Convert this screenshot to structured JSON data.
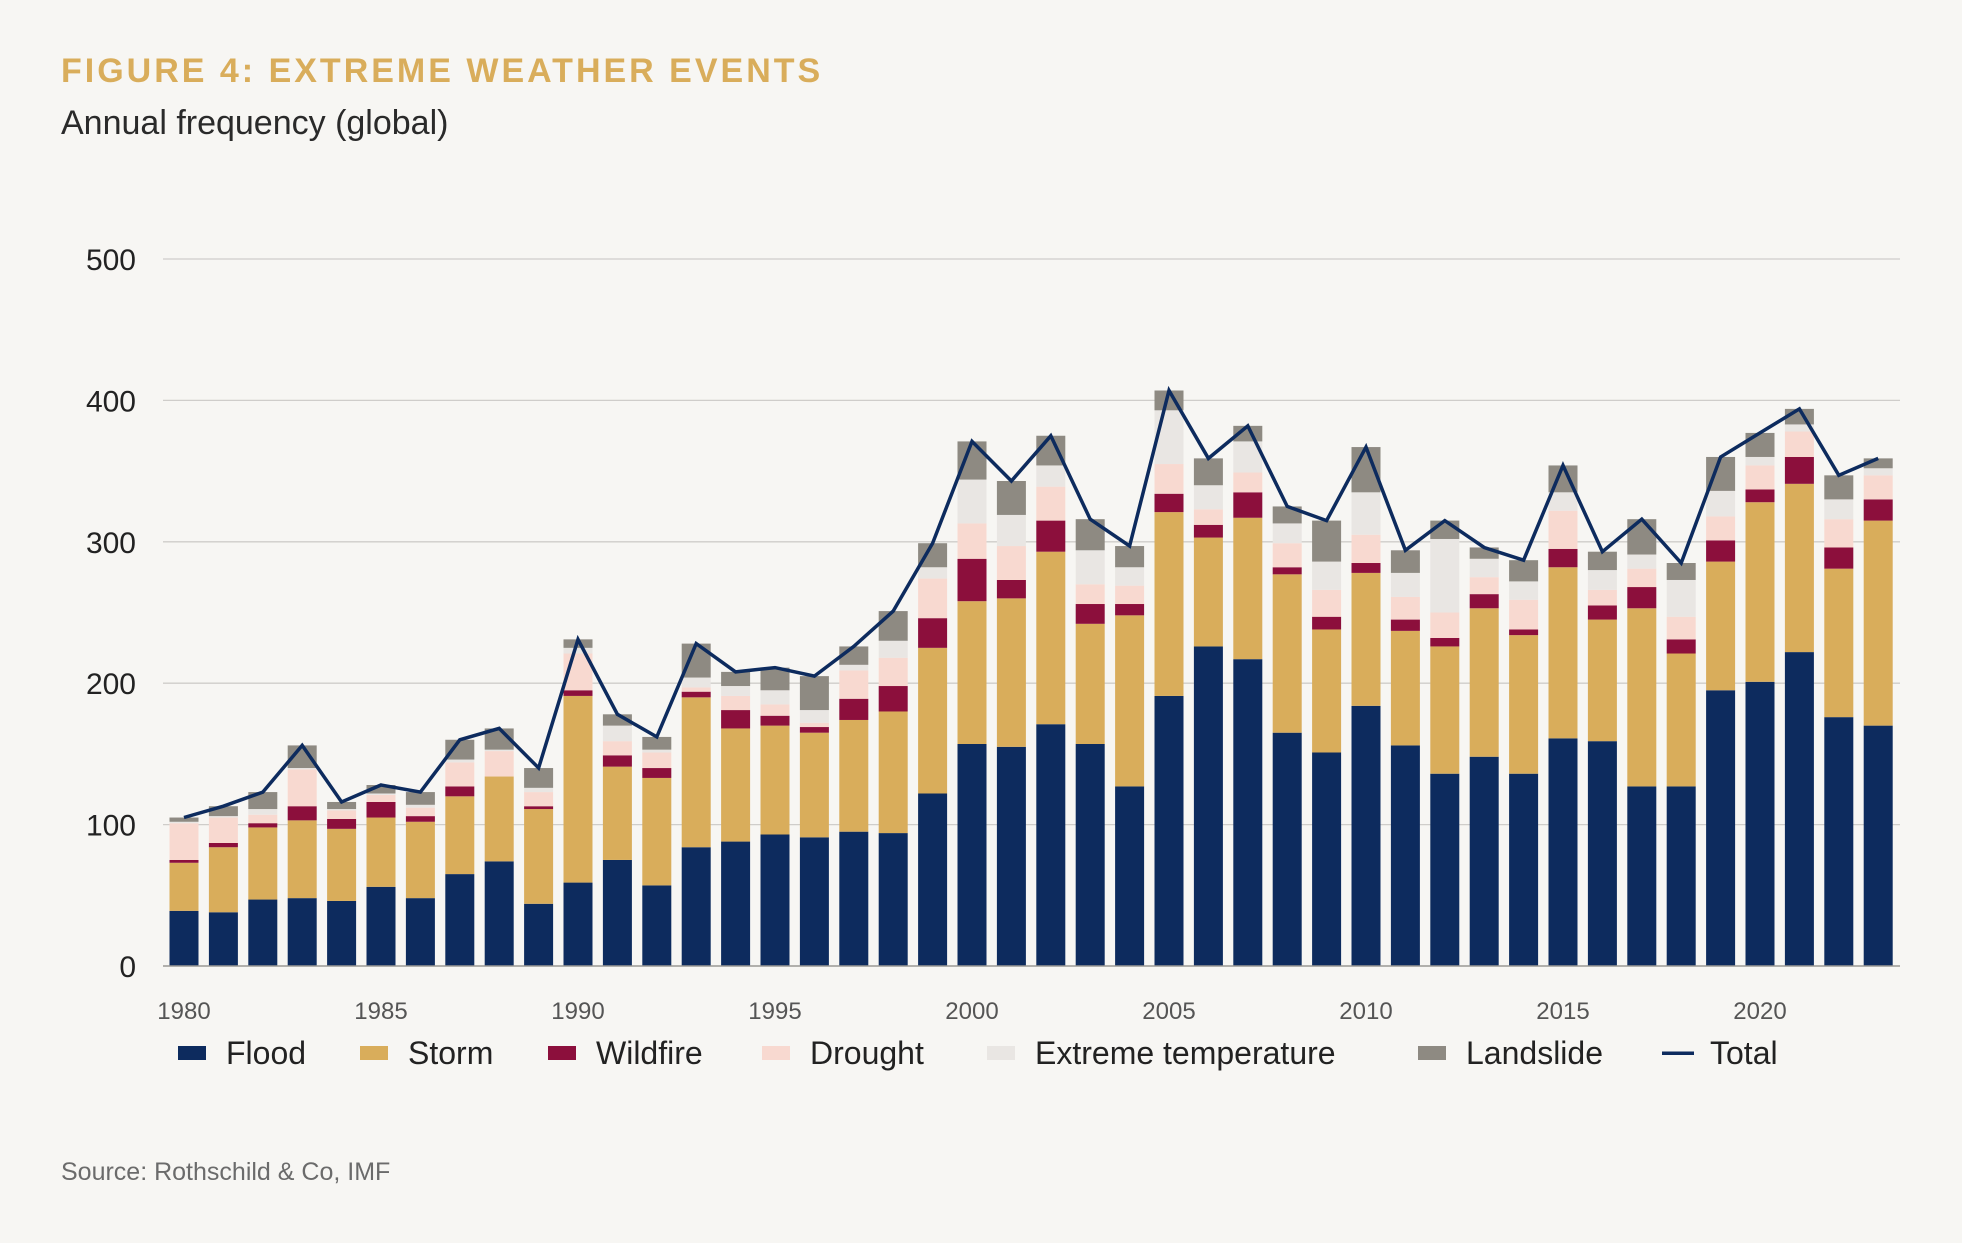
{
  "header": {
    "title": "FIGURE 4: EXTREME WEATHER EVENTS",
    "subtitle": "Annual frequency (global)"
  },
  "footer": {
    "source": "Source: Rothschild & Co, IMF"
  },
  "chart_data": {
    "type": "bar",
    "stacked": true,
    "overlay_line": "Total",
    "title": "FIGURE 4: EXTREME WEATHER EVENTS",
    "subtitle": "Annual frequency (global)",
    "xlabel": "",
    "ylabel": "",
    "ylim": [
      0,
      500
    ],
    "yticks": [
      0,
      100,
      200,
      300,
      400,
      500
    ],
    "xtick_labels": [
      "1980",
      "1985",
      "1990",
      "1995",
      "2000",
      "2005",
      "2010",
      "2015",
      "2020"
    ],
    "grid": true,
    "legend_position": "bottom",
    "categories": [
      1980,
      1981,
      1982,
      1983,
      1984,
      1985,
      1986,
      1987,
      1988,
      1989,
      1990,
      1991,
      1992,
      1993,
      1994,
      1995,
      1996,
      1997,
      1998,
      1999,
      2000,
      2001,
      2002,
      2003,
      2004,
      2005,
      2006,
      2007,
      2008,
      2009,
      2010,
      2011,
      2012,
      2013,
      2014,
      2015,
      2016,
      2017,
      2018,
      2019,
      2020,
      2021,
      2022,
      2023
    ],
    "series": [
      {
        "name": "Flood",
        "color": "#0d2b5e",
        "values": [
          39,
          38,
          47,
          48,
          46,
          56,
          48,
          65,
          74,
          44,
          59,
          75,
          57,
          84,
          88,
          93,
          91,
          95,
          94,
          122,
          157,
          155,
          171,
          157,
          127,
          191,
          226,
          217,
          165,
          151,
          184,
          156,
          136,
          148,
          136,
          161,
          159,
          127,
          127,
          195,
          201,
          222,
          176,
          170
        ]
      },
      {
        "name": "Storm",
        "color": "#d9ad5b",
        "values": [
          34,
          46,
          51,
          55,
          51,
          49,
          54,
          55,
          60,
          67,
          132,
          66,
          76,
          106,
          80,
          77,
          74,
          79,
          86,
          103,
          101,
          105,
          122,
          85,
          121,
          130,
          77,
          100,
          112,
          87,
          94,
          81,
          90,
          105,
          98,
          121,
          86,
          126,
          94,
          91,
          127,
          119,
          105,
          145
        ]
      },
      {
        "name": "Wildfire",
        "color": "#8c0f3c",
        "values": [
          2,
          3,
          3,
          10,
          7,
          11,
          4,
          7,
          0,
          2,
          4,
          8,
          7,
          4,
          13,
          7,
          4,
          15,
          18,
          21,
          30,
          13,
          22,
          14,
          8,
          13,
          9,
          18,
          5,
          9,
          7,
          8,
          6,
          10,
          4,
          13,
          10,
          15,
          10,
          15,
          9,
          19,
          15,
          15
        ]
      },
      {
        "name": "Drought",
        "color": "#f8d9d0",
        "values": [
          26,
          18,
          6,
          26,
          6,
          5,
          6,
          17,
          18,
          10,
          26,
          10,
          11,
          3,
          10,
          8,
          3,
          20,
          20,
          28,
          25,
          24,
          24,
          14,
          13,
          21,
          11,
          14,
          17,
          19,
          20,
          16,
          18,
          12,
          21,
          27,
          11,
          13,
          16,
          17,
          17,
          18,
          20,
          17
        ]
      },
      {
        "name": "Extreme temperature",
        "color": "#e9e6e3",
        "values": [
          1,
          1,
          4,
          1,
          1,
          1,
          2,
          2,
          1,
          3,
          4,
          11,
          2,
          7,
          7,
          10,
          9,
          4,
          12,
          8,
          31,
          22,
          15,
          24,
          13,
          38,
          17,
          22,
          14,
          20,
          30,
          17,
          52,
          13,
          13,
          13,
          14,
          10,
          26,
          18,
          6,
          5,
          14,
          5
        ]
      },
      {
        "name": "Landslide",
        "color": "#8e8a82",
        "values": [
          3,
          7,
          12,
          16,
          5,
          6,
          9,
          14,
          15,
          14,
          6,
          8,
          9,
          24,
          10,
          16,
          24,
          13,
          21,
          17,
          27,
          24,
          21,
          22,
          15,
          14,
          19,
          11,
          12,
          29,
          32,
          16,
          13,
          8,
          15,
          19,
          13,
          25,
          12,
          24,
          17,
          11,
          17,
          7
        ]
      },
      {
        "name": "Total",
        "color": "#0d2b5e",
        "values": [
          105,
          113,
          123,
          156,
          116,
          128,
          123,
          160,
          168,
          140,
          231,
          178,
          162,
          228,
          208,
          211,
          205,
          226,
          251,
          299,
          371,
          343,
          375,
          316,
          297,
          407,
          359,
          382,
          325,
          315,
          367,
          294,
          315,
          296,
          287,
          354,
          293,
          316,
          285,
          360,
          377,
          394,
          347,
          359
        ]
      }
    ]
  }
}
